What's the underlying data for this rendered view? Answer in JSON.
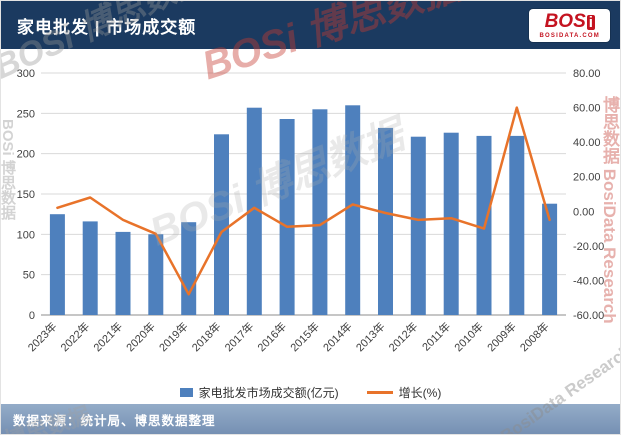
{
  "header": {
    "title": "家电批发 | 市场成交额"
  },
  "logo": {
    "brand_main": "BOS",
    "brand_i": "i",
    "domain": "BOSIDATA.COM"
  },
  "watermarks": {
    "cn": "BOSi 博思数据",
    "en": "BosiData Research",
    "mix": "博思数据 BosiData Research",
    "short": "博思数据"
  },
  "chart_data": {
    "type": "bar",
    "combo": "bar+line",
    "title": "家电批发 | 市场成交额",
    "categories": [
      "2023年",
      "2022年",
      "2021年",
      "2020年",
      "2019年",
      "2018年",
      "2017年",
      "2016年",
      "2015年",
      "2014年",
      "2013年",
      "2012年",
      "2011年",
      "2010年",
      "2009年",
      "2008年"
    ],
    "series": [
      {
        "name": "家电批发市场成交额(亿元)",
        "type": "bar",
        "axis": "left",
        "color": "#4e80bd",
        "values": [
          125,
          116,
          103,
          100,
          115,
          224,
          257,
          243,
          255,
          260,
          232,
          221,
          226,
          222,
          222,
          138
        ]
      },
      {
        "name": "增长(%)",
        "type": "line",
        "axis": "right",
        "color": "#e8732a",
        "values": [
          2.0,
          8.0,
          -5.0,
          -13.0,
          -48.0,
          -12.0,
          2.0,
          -9.0,
          -8.0,
          4.0,
          -1.0,
          -5.0,
          -4.0,
          -10.0,
          60.0,
          -5.0
        ]
      }
    ],
    "left_axis": {
      "range": [
        0,
        300
      ],
      "step": 50
    },
    "right_axis": {
      "range": [
        -60,
        80
      ],
      "step": 20,
      "format": "0.00"
    },
    "grid": true,
    "legend_position": "bottom"
  },
  "legend": {
    "bar": "家电批发市场成交额(亿元)",
    "line": "增长(%)"
  },
  "footer": {
    "source": "数据来源：统计局、博思数据整理"
  }
}
